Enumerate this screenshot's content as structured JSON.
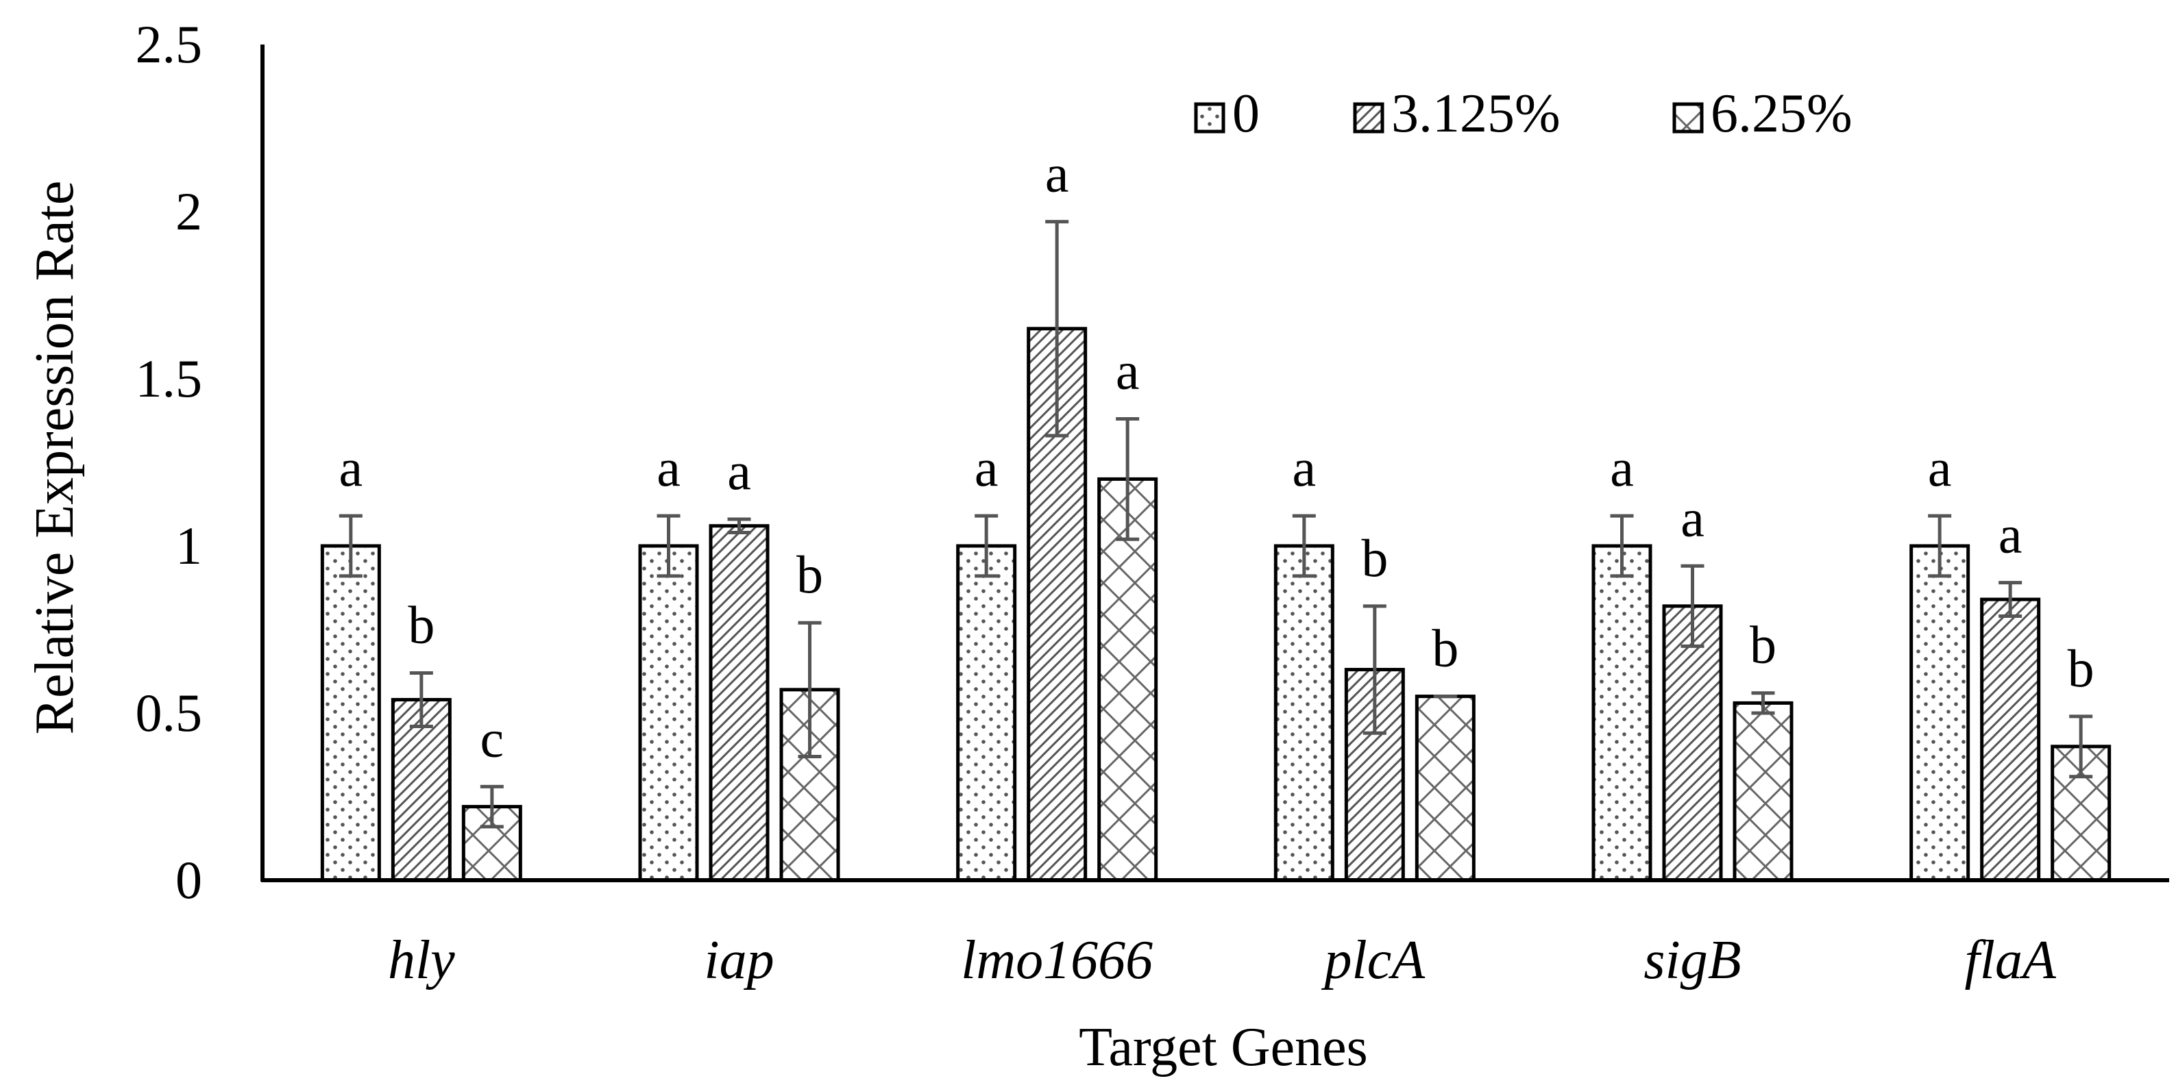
{
  "chart_data": {
    "type": "bar",
    "title": "",
    "xlabel": "Target Genes",
    "ylabel": "Relative Expression Rate",
    "ylim": [
      0,
      2.5
    ],
    "yticks": [
      0,
      0.5,
      1,
      1.5,
      2,
      2.5
    ],
    "ytick_labels": [
      "0",
      "0.5",
      "1",
      "1.5",
      "2",
      "2.5"
    ],
    "grid": false,
    "legend_position": "top-right",
    "categories": [
      "hly",
      "iap",
      "lmo1666",
      "plcA",
      "sigB",
      "flaA"
    ],
    "series": [
      {
        "name": "0",
        "pattern": "dots",
        "values": [
          1.0,
          1.0,
          1.0,
          1.0,
          1.0,
          1.0
        ],
        "errors": [
          0.09,
          0.09,
          0.09,
          0.09,
          0.09,
          0.09
        ],
        "significance": [
          "a",
          "a",
          "a",
          "a",
          "a",
          "a"
        ]
      },
      {
        "name": "3.125%",
        "pattern": "diagonal",
        "values": [
          0.54,
          1.06,
          1.65,
          0.63,
          0.82,
          0.84
        ],
        "errors": [
          0.08,
          0.02,
          0.32,
          0.19,
          0.12,
          0.05
        ],
        "significance": [
          "b",
          "a",
          "a",
          "b",
          "a",
          "a"
        ]
      },
      {
        "name": "6.25%",
        "pattern": "zigzag",
        "values": [
          0.22,
          0.57,
          1.2,
          0.55,
          0.53,
          0.4
        ],
        "errors": [
          0.06,
          0.2,
          0.18,
          0.0,
          0.03,
          0.09
        ],
        "significance": [
          "c",
          "b",
          "a",
          "b",
          "b",
          "b"
        ]
      }
    ],
    "colors": {
      "axis": "#000000",
      "bar_fill": "#ffffff",
      "pattern": "#555555",
      "error_bar": "#555555"
    }
  }
}
